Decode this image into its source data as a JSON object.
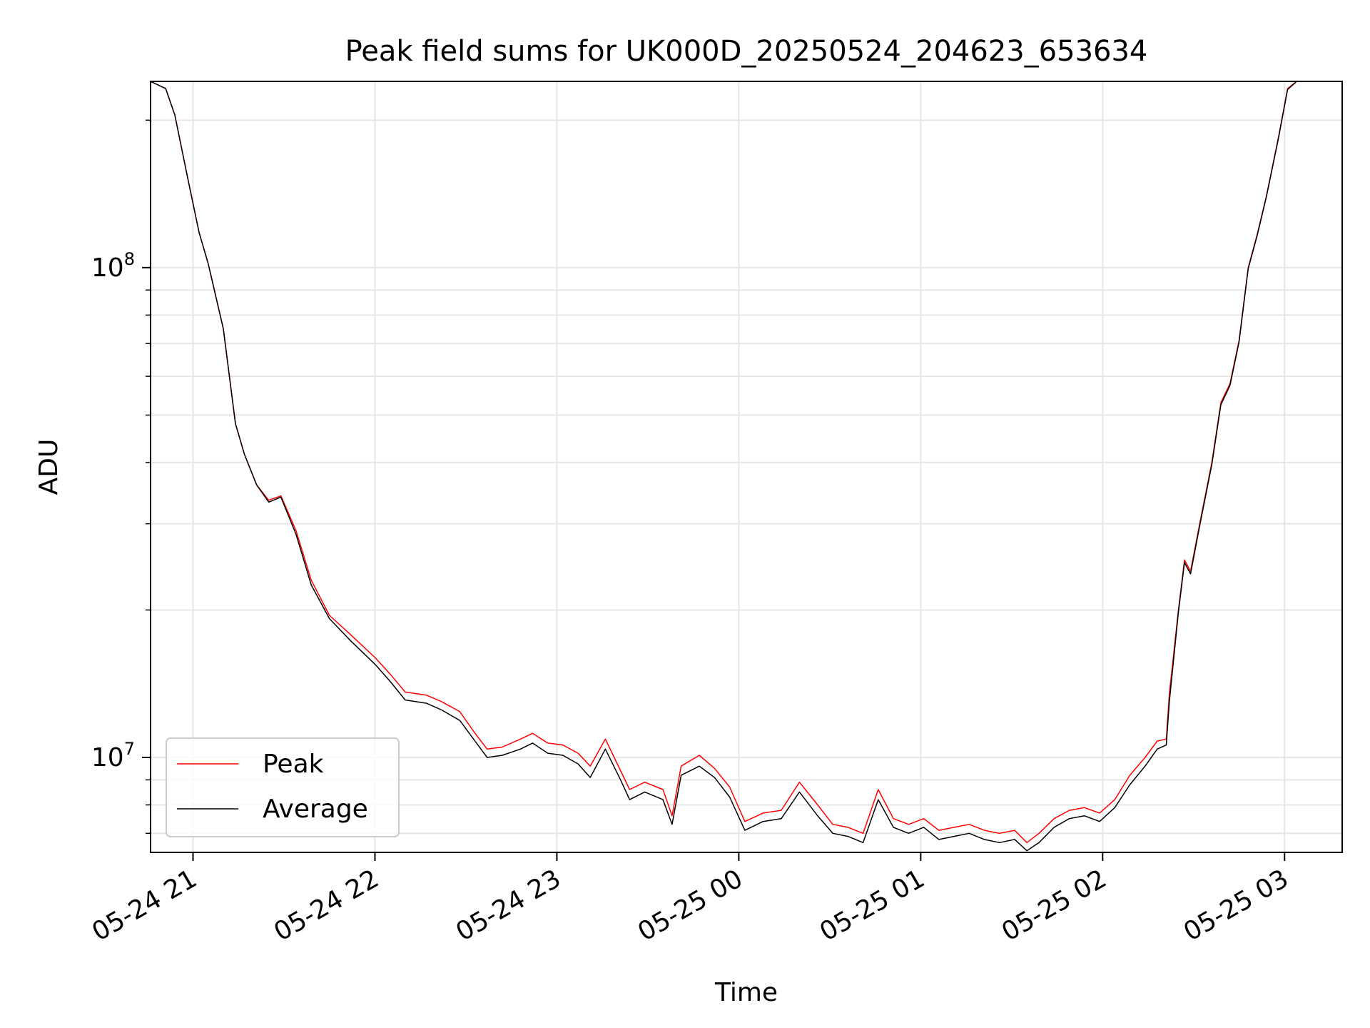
{
  "chart_data": {
    "type": "line",
    "title": "Peak field sums for UK000D_20250524_204623_653634",
    "xlabel": "Time",
    "ylabel": "ADU",
    "yscale": "log",
    "xlim": [
      "2025-05-24 20:46",
      "2025-05-25 03:19"
    ],
    "ylim": [
      6400000,
      240000000
    ],
    "x_ticks": [
      "05-24 21",
      "05-24 22",
      "05-24 23",
      "05-25 00",
      "05-25 01",
      "05-25 02",
      "05-25 03"
    ],
    "y_ticks": [
      {
        "base": "10",
        "exp": "7",
        "value": 10000000
      },
      {
        "base": "10",
        "exp": "8",
        "value": 100000000
      }
    ],
    "grid": true,
    "legend_position": "lower-left",
    "colors": {
      "peak": "#ff0000",
      "average": "#000000",
      "grid": "#e6e6e6"
    },
    "series": [
      {
        "name": "Peak",
        "color": "#ff0000",
        "points": [
          [
            "2025-05-24 20:46",
            240000000
          ],
          [
            "2025-05-24 20:51",
            232000000
          ],
          [
            "2025-05-24 20:54",
            205000000
          ],
          [
            "2025-05-24 20:58",
            155000000
          ],
          [
            "2025-05-24 21:02",
            118000000
          ],
          [
            "2025-05-24 21:05",
            102000000
          ],
          [
            "2025-05-24 21:10",
            75000000
          ],
          [
            "2025-05-24 21:14",
            48000000
          ],
          [
            "2025-05-24 21:17",
            41500000
          ],
          [
            "2025-05-24 21:21",
            36000000
          ],
          [
            "2025-05-24 21:25",
            33500000
          ],
          [
            "2025-05-24 21:29",
            34200000
          ],
          [
            "2025-05-24 21:34",
            29000000
          ],
          [
            "2025-05-24 21:39",
            23000000
          ],
          [
            "2025-05-24 21:45",
            19500000
          ],
          [
            "2025-05-24 21:52",
            17800000
          ],
          [
            "2025-05-24 22:00",
            16000000
          ],
          [
            "2025-05-24 22:05",
            14800000
          ],
          [
            "2025-05-24 22:10",
            13600000
          ],
          [
            "2025-05-24 22:17",
            13400000
          ],
          [
            "2025-05-24 22:22",
            13000000
          ],
          [
            "2025-05-24 22:28",
            12400000
          ],
          [
            "2025-05-24 22:33",
            11200000
          ],
          [
            "2025-05-24 22:37",
            10400000
          ],
          [
            "2025-05-24 22:42",
            10500000
          ],
          [
            "2025-05-24 22:48",
            10900000
          ],
          [
            "2025-05-24 22:52",
            11200000
          ],
          [
            "2025-05-24 22:57",
            10700000
          ],
          [
            "2025-05-24 23:02",
            10600000
          ],
          [
            "2025-05-24 23:07",
            10200000
          ],
          [
            "2025-05-24 23:11",
            9600000
          ],
          [
            "2025-05-24 23:16",
            10900000
          ],
          [
            "2025-05-24 23:21",
            9400000
          ],
          [
            "2025-05-24 23:24",
            8600000
          ],
          [
            "2025-05-24 23:29",
            8900000
          ],
          [
            "2025-05-24 23:35",
            8600000
          ],
          [
            "2025-05-24 23:38",
            7600000
          ],
          [
            "2025-05-24 23:41",
            9600000
          ],
          [
            "2025-05-24 23:47",
            10100000
          ],
          [
            "2025-05-24 23:52",
            9500000
          ],
          [
            "2025-05-24 23:57",
            8700000
          ],
          [
            "2025-05-25 00:02",
            7400000
          ],
          [
            "2025-05-25 00:08",
            7700000
          ],
          [
            "2025-05-25 00:14",
            7800000
          ],
          [
            "2025-05-25 00:20",
            8900000
          ],
          [
            "2025-05-25 00:26",
            8000000
          ],
          [
            "2025-05-25 00:31",
            7300000
          ],
          [
            "2025-05-25 00:36",
            7200000
          ],
          [
            "2025-05-25 00:41",
            7000000
          ],
          [
            "2025-05-25 00:46",
            8600000
          ],
          [
            "2025-05-25 00:51",
            7500000
          ],
          [
            "2025-05-25 00:56",
            7300000
          ],
          [
            "2025-05-25 01:01",
            7500000
          ],
          [
            "2025-05-25 01:06",
            7100000
          ],
          [
            "2025-05-25 01:11",
            7200000
          ],
          [
            "2025-05-25 01:16",
            7300000
          ],
          [
            "2025-05-25 01:21",
            7100000
          ],
          [
            "2025-05-25 01:26",
            7000000
          ],
          [
            "2025-05-25 01:31",
            7100000
          ],
          [
            "2025-05-25 01:35",
            6700000
          ],
          [
            "2025-05-25 01:39",
            7000000
          ],
          [
            "2025-05-25 01:44",
            7500000
          ],
          [
            "2025-05-25 01:49",
            7800000
          ],
          [
            "2025-05-25 01:54",
            7900000
          ],
          [
            "2025-05-25 01:59",
            7700000
          ],
          [
            "2025-05-25 02:04",
            8200000
          ],
          [
            "2025-05-25 02:09",
            9200000
          ],
          [
            "2025-05-25 02:14",
            10000000
          ],
          [
            "2025-05-25 02:18",
            10800000
          ],
          [
            "2025-05-25 02:21",
            10900000
          ],
          [
            "2025-05-25 02:22",
            13500000
          ],
          [
            "2025-05-25 02:25",
            20000000
          ],
          [
            "2025-05-25 02:27",
            25300000
          ],
          [
            "2025-05-25 02:29",
            24000000
          ],
          [
            "2025-05-25 02:32",
            30000000
          ],
          [
            "2025-05-25 02:36",
            40000000
          ],
          [
            "2025-05-25 02:39",
            53000000
          ],
          [
            "2025-05-25 02:42",
            58000000
          ],
          [
            "2025-05-25 02:45",
            71000000
          ],
          [
            "2025-05-25 02:48",
            100000000
          ],
          [
            "2025-05-25 02:51",
            117000000
          ],
          [
            "2025-05-25 02:54",
            140000000
          ],
          [
            "2025-05-25 02:58",
            185000000
          ],
          [
            "2025-05-25 03:01",
            232000000
          ],
          [
            "2025-05-25 03:04",
            240000000
          ],
          [
            "2025-05-25 03:19",
            240000000
          ]
        ]
      },
      {
        "name": "Average",
        "color": "#000000",
        "points": [
          [
            "2025-05-24 20:46",
            240000000
          ],
          [
            "2025-05-24 20:51",
            232000000
          ],
          [
            "2025-05-24 20:54",
            205000000
          ],
          [
            "2025-05-24 20:58",
            155000000
          ],
          [
            "2025-05-24 21:02",
            118000000
          ],
          [
            "2025-05-24 21:05",
            102000000
          ],
          [
            "2025-05-24 21:10",
            75000000
          ],
          [
            "2025-05-24 21:14",
            48000000
          ],
          [
            "2025-05-24 21:17",
            41500000
          ],
          [
            "2025-05-24 21:21",
            36000000
          ],
          [
            "2025-05-24 21:25",
            33200000
          ],
          [
            "2025-05-24 21:29",
            34000000
          ],
          [
            "2025-05-24 21:34",
            28500000
          ],
          [
            "2025-05-24 21:39",
            22500000
          ],
          [
            "2025-05-24 21:45",
            19200000
          ],
          [
            "2025-05-24 21:52",
            17300000
          ],
          [
            "2025-05-24 22:00",
            15500000
          ],
          [
            "2025-05-24 22:05",
            14300000
          ],
          [
            "2025-05-24 22:10",
            13100000
          ],
          [
            "2025-05-24 22:17",
            12900000
          ],
          [
            "2025-05-24 22:22",
            12500000
          ],
          [
            "2025-05-24 22:28",
            11900000
          ],
          [
            "2025-05-24 22:33",
            10800000
          ],
          [
            "2025-05-24 22:37",
            10000000
          ],
          [
            "2025-05-24 22:42",
            10100000
          ],
          [
            "2025-05-24 22:48",
            10400000
          ],
          [
            "2025-05-24 22:52",
            10700000
          ],
          [
            "2025-05-24 22:57",
            10200000
          ],
          [
            "2025-05-24 23:02",
            10100000
          ],
          [
            "2025-05-24 23:07",
            9700000
          ],
          [
            "2025-05-24 23:11",
            9100000
          ],
          [
            "2025-05-24 23:16",
            10400000
          ],
          [
            "2025-05-24 23:21",
            9000000
          ],
          [
            "2025-05-24 23:24",
            8200000
          ],
          [
            "2025-05-24 23:29",
            8500000
          ],
          [
            "2025-05-24 23:35",
            8200000
          ],
          [
            "2025-05-24 23:38",
            7300000
          ],
          [
            "2025-05-24 23:41",
            9200000
          ],
          [
            "2025-05-24 23:47",
            9600000
          ],
          [
            "2025-05-24 23:52",
            9100000
          ],
          [
            "2025-05-24 23:57",
            8300000
          ],
          [
            "2025-05-25 00:02",
            7100000
          ],
          [
            "2025-05-25 00:08",
            7400000
          ],
          [
            "2025-05-25 00:14",
            7500000
          ],
          [
            "2025-05-25 00:20",
            8500000
          ],
          [
            "2025-05-25 00:26",
            7600000
          ],
          [
            "2025-05-25 00:31",
            7000000
          ],
          [
            "2025-05-25 00:36",
            6900000
          ],
          [
            "2025-05-25 00:41",
            6700000
          ],
          [
            "2025-05-25 00:46",
            8200000
          ],
          [
            "2025-05-25 00:51",
            7200000
          ],
          [
            "2025-05-25 00:56",
            7000000
          ],
          [
            "2025-05-25 01:01",
            7200000
          ],
          [
            "2025-05-25 01:06",
            6800000
          ],
          [
            "2025-05-25 01:11",
            6900000
          ],
          [
            "2025-05-25 01:16",
            7000000
          ],
          [
            "2025-05-25 01:21",
            6800000
          ],
          [
            "2025-05-25 01:26",
            6700000
          ],
          [
            "2025-05-25 01:31",
            6800000
          ],
          [
            "2025-05-25 01:35",
            6450000
          ],
          [
            "2025-05-25 01:39",
            6700000
          ],
          [
            "2025-05-25 01:44",
            7200000
          ],
          [
            "2025-05-25 01:49",
            7500000
          ],
          [
            "2025-05-25 01:54",
            7600000
          ],
          [
            "2025-05-25 01:59",
            7400000
          ],
          [
            "2025-05-25 02:04",
            7900000
          ],
          [
            "2025-05-25 02:09",
            8800000
          ],
          [
            "2025-05-25 02:14",
            9600000
          ],
          [
            "2025-05-25 02:18",
            10400000
          ],
          [
            "2025-05-25 02:21",
            10600000
          ],
          [
            "2025-05-25 02:22",
            13000000
          ],
          [
            "2025-05-25 02:25",
            19800000
          ],
          [
            "2025-05-25 02:27",
            25000000
          ],
          [
            "2025-05-25 02:29",
            23700000
          ],
          [
            "2025-05-25 02:32",
            29700000
          ],
          [
            "2025-05-25 02:36",
            39600000
          ],
          [
            "2025-05-25 02:39",
            52500000
          ],
          [
            "2025-05-25 02:42",
            57500000
          ],
          [
            "2025-05-25 02:45",
            70500000
          ],
          [
            "2025-05-25 02:48",
            99500000
          ],
          [
            "2025-05-25 02:51",
            116500000
          ],
          [
            "2025-05-25 02:54",
            139500000
          ],
          [
            "2025-05-25 02:58",
            184000000
          ],
          [
            "2025-05-25 03:01",
            231000000
          ],
          [
            "2025-05-25 03:04",
            240000000
          ],
          [
            "2025-05-25 03:19",
            240000000
          ]
        ]
      }
    ]
  }
}
